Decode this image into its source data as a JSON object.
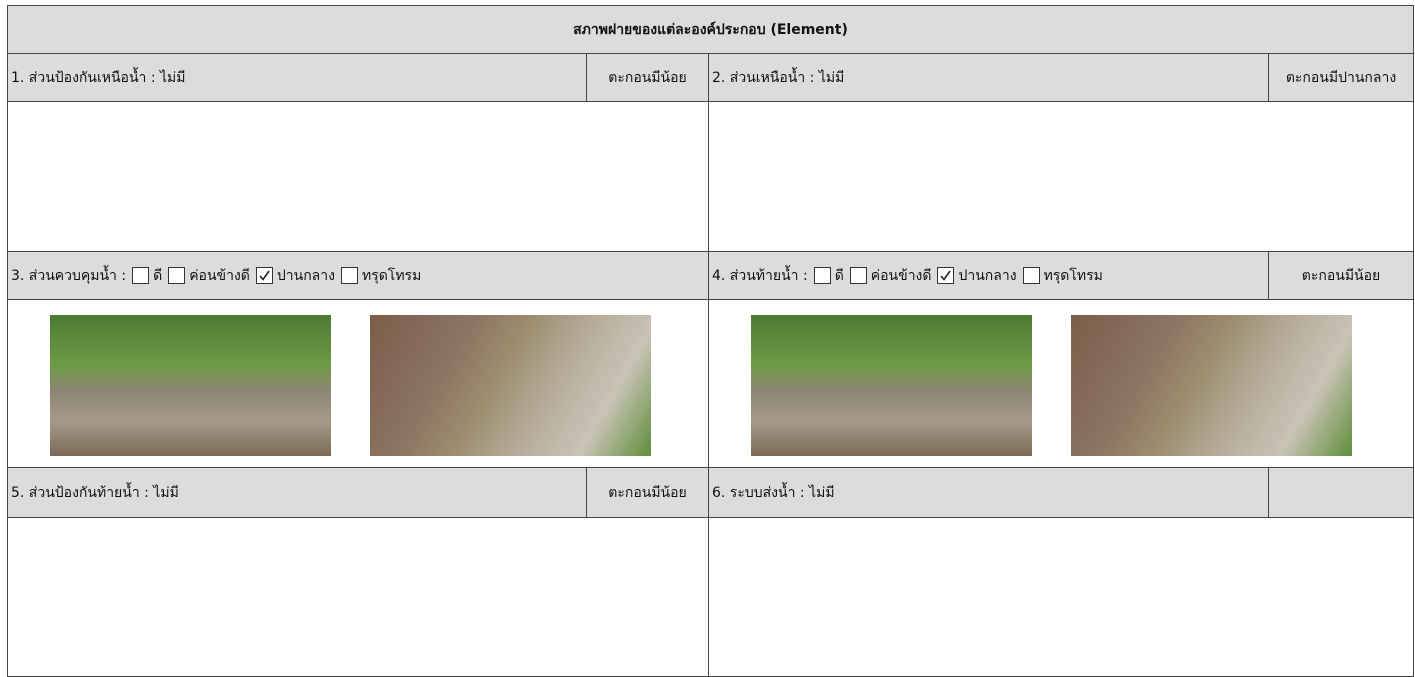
{
  "header": {
    "title": "สภาพฝายของแต่ละองค์ประกอบ (Element)"
  },
  "sections": [
    {
      "label": "1. ส่วนป้องกันเหนือน้ำ : ไม่มี",
      "note": "ตะกอนมีน้อย"
    },
    {
      "label": "2. ส่วนเหนือน้ำ : ไม่มี",
      "note": "ตะกอนมีปานกลาง"
    },
    {
      "label": "3. ส่วนควบคุมน้ำ :",
      "options": [
        {
          "text": "ดี",
          "checked": false
        },
        {
          "text": "ค่อนข้างดี",
          "checked": false
        },
        {
          "text": "ปานกลาง",
          "checked": true
        },
        {
          "text": "ทรุดโทรม",
          "checked": false
        }
      ]
    },
    {
      "label": "4. ส่วนท้ายน้ำ :",
      "options": [
        {
          "text": "ดี",
          "checked": false
        },
        {
          "text": "ค่อนข้างดี",
          "checked": false
        },
        {
          "text": "ปานกลาง",
          "checked": true
        },
        {
          "text": "ทรุดโทรม",
          "checked": false
        }
      ],
      "note": "ตะกอนมีน้อย"
    },
    {
      "label": "5. ส่วนป้องกันท้ายน้ำ : ไม่มี",
      "note": "ตะกอนมีน้อย"
    },
    {
      "label": "6. ระบบส่งน้ำ : ไม่มี"
    }
  ]
}
